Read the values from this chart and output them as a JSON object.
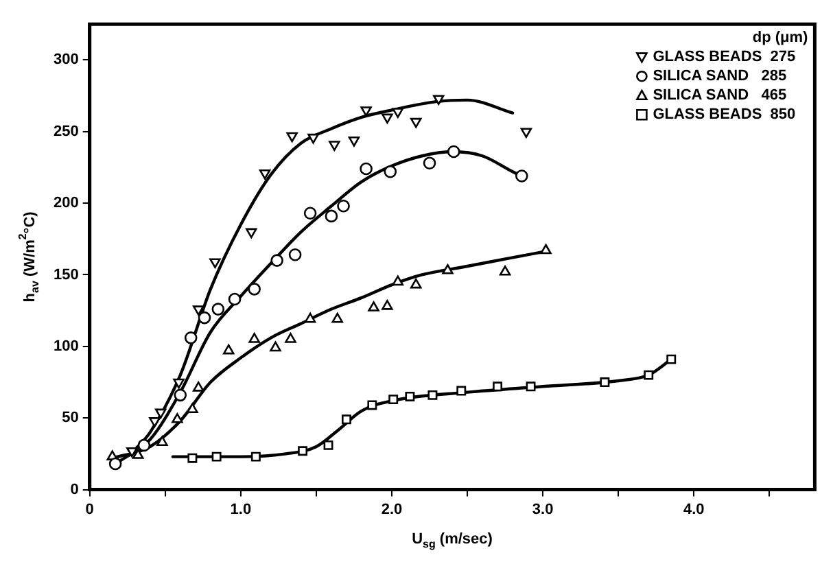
{
  "chart_data": {
    "type": "scatter",
    "xlabel": "U$_{sg}$ (m/sec)",
    "ylabel": "h$_{av}$ (W/m$^{2}$°C)",
    "legend_title": "dp (μm)",
    "xlim": [
      0,
      4.8
    ],
    "xticks": [
      0,
      {
        "value": 0.5,
        "label": null
      },
      {
        "value": 1,
        "label": "1.0"
      },
      {
        "value": 1.5,
        "label": null
      },
      {
        "value": 2,
        "label": "2.0"
      },
      {
        "value": 2.5,
        "label": null
      },
      {
        "value": 3,
        "label": "3.0"
      },
      {
        "value": 3.5,
        "label": null
      },
      {
        "value": 4,
        "label": "4.0"
      },
      {
        "value": 4.5,
        "label": null
      }
    ],
    "ylim": [
      0,
      325
    ],
    "yticks": [
      0,
      50,
      100,
      150,
      200,
      250,
      300
    ],
    "grid": false,
    "legend": "top right",
    "series": [
      {
        "name": "GLASS BEADS  275",
        "marker": "triangle-down",
        "color": "#000000",
        "x": [
          0.28,
          0.43,
          0.47,
          0.59,
          0.72,
          0.83,
          1.07,
          1.16,
          1.34,
          1.48,
          1.62,
          1.75,
          1.83,
          1.97,
          2.04,
          2.16,
          2.31,
          2.89
        ],
        "values": [
          27,
          48,
          54,
          75,
          126,
          159,
          180,
          221,
          247,
          246,
          241,
          244,
          265,
          260,
          264,
          257,
          273,
          250
        ]
      },
      {
        "name": "SILICA SAND   285",
        "marker": "circle",
        "color": "#000000",
        "x": [
          0.17,
          0.36,
          0.6,
          0.67,
          0.76,
          0.85,
          0.96,
          1.09,
          1.24,
          1.36,
          1.46,
          1.6,
          1.68,
          1.83,
          1.99,
          2.25,
          2.41,
          2.86
        ],
        "values": [
          18,
          31,
          66,
          106,
          120,
          126,
          133,
          140,
          160,
          164,
          193,
          191,
          198,
          224,
          222,
          228,
          236,
          219
        ]
      },
      {
        "name": "SILICA SAND   465",
        "marker": "triangle",
        "color": "#000000",
        "x": [
          0.15,
          0.32,
          0.48,
          0.58,
          0.68,
          0.72,
          0.92,
          1.09,
          1.23,
          1.33,
          1.46,
          1.64,
          1.88,
          1.97,
          2.04,
          2.16,
          2.37,
          2.75,
          3.02
        ],
        "values": [
          23,
          24,
          33,
          49,
          56,
          71,
          97,
          105,
          99,
          105,
          119,
          119,
          127,
          128,
          145,
          143,
          153,
          152,
          167
        ]
      },
      {
        "name": "GLASS BEADS  850",
        "marker": "square",
        "color": "#000000",
        "x": [
          0.68,
          0.84,
          1.1,
          1.41,
          1.58,
          1.7,
          1.87,
          2.01,
          2.12,
          2.27,
          2.46,
          2.7,
          2.92,
          3.41,
          3.7,
          3.85
        ],
        "values": [
          22,
          23,
          23,
          27,
          31,
          49,
          59,
          63,
          65,
          66,
          69,
          72,
          72,
          75,
          80,
          91
        ]
      },
      {
        "type": "line",
        "marker": "none",
        "color": "#000000",
        "x": [
          0.3,
          0.4,
          0.6,
          0.8,
          1.0,
          1.2,
          1.4,
          1.6,
          1.8,
          2.0,
          2.3,
          2.5,
          2.8
        ],
        "values": [
          28,
          40,
          80,
          140,
          185,
          220,
          242,
          252,
          260,
          265,
          271,
          272,
          263
        ]
      },
      {
        "type": "line",
        "marker": "none",
        "color": "#000000",
        "x": [
          0.2,
          0.4,
          0.6,
          0.8,
          1.0,
          1.2,
          1.4,
          1.6,
          1.8,
          2.0,
          2.2,
          2.4,
          2.6,
          2.8,
          2.86
        ],
        "values": [
          20,
          35,
          68,
          110,
          135,
          158,
          180,
          198,
          215,
          226,
          233,
          236,
          233,
          222,
          219
        ]
      },
      {
        "type": "line",
        "marker": "none",
        "color": "#000000",
        "x": [
          0.15,
          0.4,
          0.6,
          0.8,
          1.0,
          1.2,
          1.4,
          1.6,
          1.8,
          2.0,
          2.2,
          2.5,
          2.8,
          3.0
        ],
        "values": [
          22,
          30,
          48,
          75,
          92,
          106,
          116,
          126,
          134,
          143,
          150,
          156,
          162,
          166
        ]
      },
      {
        "type": "line",
        "marker": "none",
        "color": "#000000",
        "x": [
          0.55,
          1.0,
          1.3,
          1.5,
          1.65,
          1.8,
          2.0,
          2.5,
          3.0,
          3.5,
          3.7,
          3.85
        ],
        "values": [
          23,
          23,
          25,
          30,
          42,
          55,
          62,
          68,
          72,
          76,
          80,
          91
        ]
      }
    ]
  }
}
